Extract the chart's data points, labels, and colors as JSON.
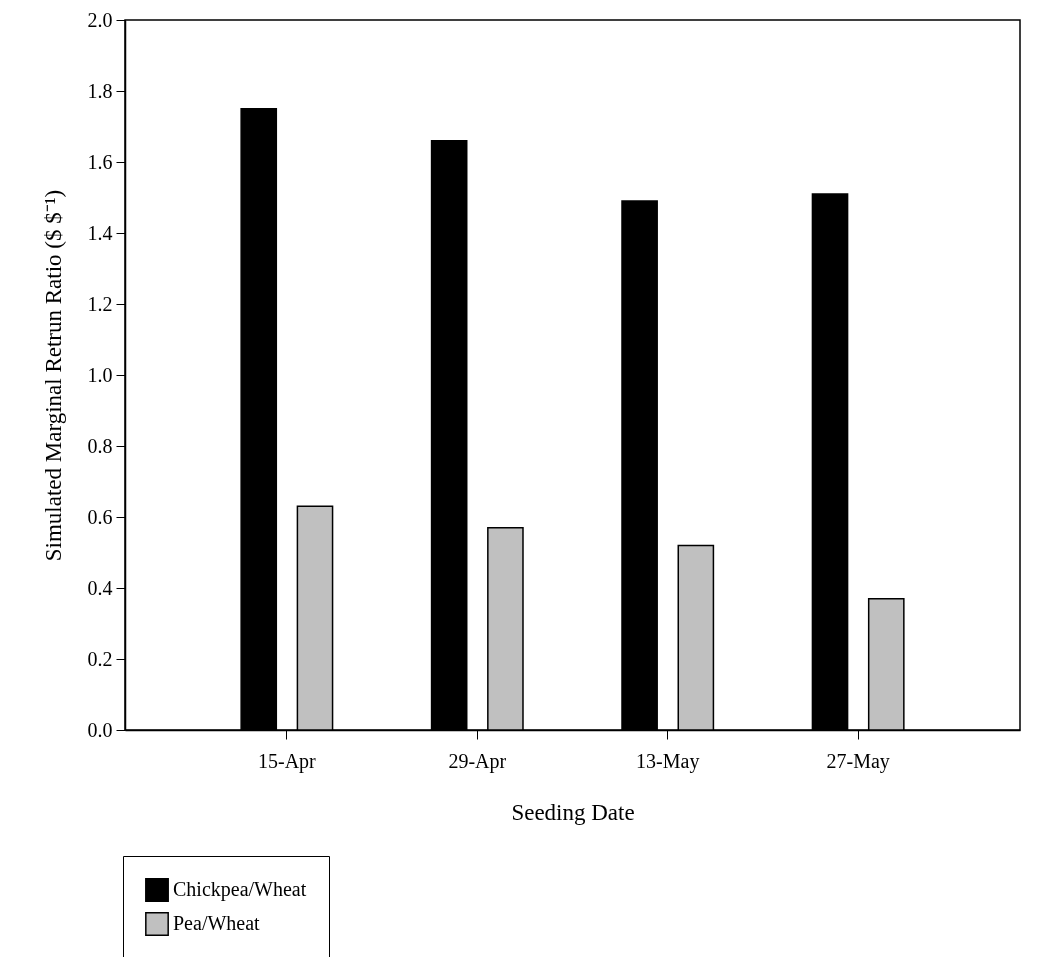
{
  "chart_data": {
    "type": "bar",
    "xlabel": "Seeding Date",
    "ylabel": "Simulated Marginal Retrun Ratio ($ $⁻¹)",
    "categories": [
      "15-Apr",
      "29-Apr",
      "13-May",
      "27-May"
    ],
    "series": [
      {
        "name": "Chickpea/Wheat",
        "color": "#000000",
        "values": [
          1.75,
          1.66,
          1.49,
          1.51
        ]
      },
      {
        "name": "Pea/Wheat",
        "color": "#c0c0c0",
        "values": [
          0.63,
          0.57,
          0.52,
          0.37
        ]
      }
    ],
    "ylim": [
      0,
      2.0
    ],
    "yticks": [
      {
        "value": 0,
        "label": "0.0"
      },
      0.2,
      0.4,
      0.6,
      0.8,
      {
        "value": 1,
        "label": "1.0"
      },
      1.2,
      1.4,
      1.6,
      1.8,
      {
        "value": 2,
        "label": "2.0"
      }
    ],
    "grid": false,
    "legend": "bottom left"
  }
}
